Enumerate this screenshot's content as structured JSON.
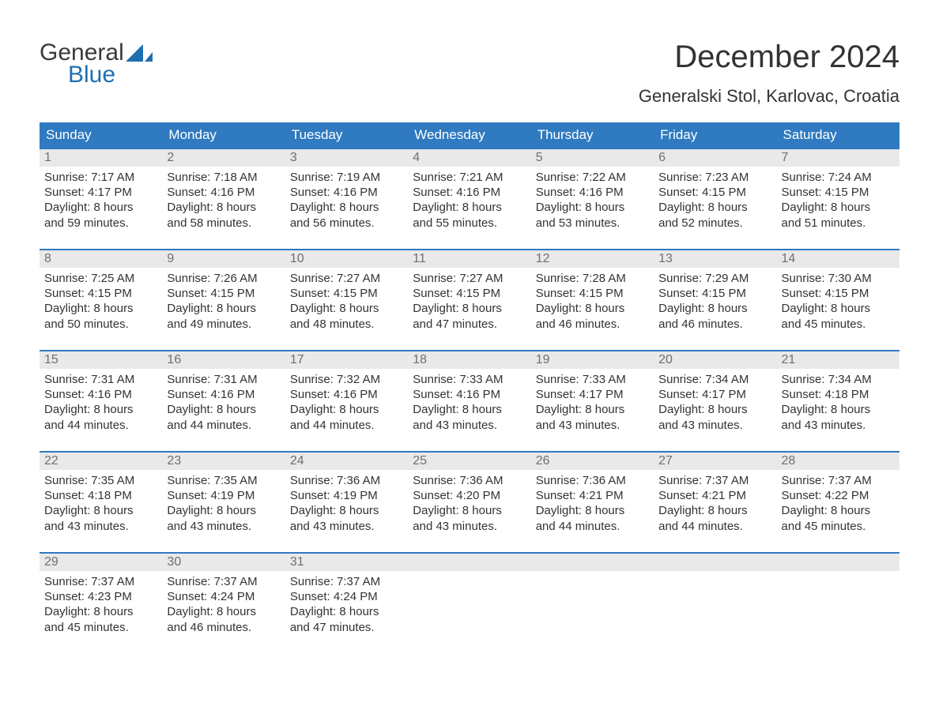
{
  "colors": {
    "header_bg": "#2f7ac0",
    "header_text": "#ffffff",
    "daynum_bg": "#e9e9e9",
    "daynum_text": "#6f6f6f",
    "body_text": "#333333",
    "week_border": "#2f7ac0",
    "logo_general": "#3a3a3a",
    "logo_blue": "#1f6fb2",
    "background": "#ffffff"
  },
  "typography": {
    "month_title_fontsize": 40,
    "location_fontsize": 22,
    "dow_fontsize": 17,
    "daynum_fontsize": 16,
    "body_fontsize": 15,
    "font_family": "Arial"
  },
  "logo": {
    "text1": "General",
    "text2": "Blue"
  },
  "title": {
    "month": "December 2024",
    "location": "Generalski Stol, Karlovac, Croatia"
  },
  "dow": [
    "Sunday",
    "Monday",
    "Tuesday",
    "Wednesday",
    "Thursday",
    "Friday",
    "Saturday"
  ],
  "weeks": [
    [
      {
        "n": "1",
        "sr": "Sunrise: 7:17 AM",
        "ss": "Sunset: 4:17 PM",
        "d1": "Daylight: 8 hours",
        "d2": "and 59 minutes."
      },
      {
        "n": "2",
        "sr": "Sunrise: 7:18 AM",
        "ss": "Sunset: 4:16 PM",
        "d1": "Daylight: 8 hours",
        "d2": "and 58 minutes."
      },
      {
        "n": "3",
        "sr": "Sunrise: 7:19 AM",
        "ss": "Sunset: 4:16 PM",
        "d1": "Daylight: 8 hours",
        "d2": "and 56 minutes."
      },
      {
        "n": "4",
        "sr": "Sunrise: 7:21 AM",
        "ss": "Sunset: 4:16 PM",
        "d1": "Daylight: 8 hours",
        "d2": "and 55 minutes."
      },
      {
        "n": "5",
        "sr": "Sunrise: 7:22 AM",
        "ss": "Sunset: 4:16 PM",
        "d1": "Daylight: 8 hours",
        "d2": "and 53 minutes."
      },
      {
        "n": "6",
        "sr": "Sunrise: 7:23 AM",
        "ss": "Sunset: 4:15 PM",
        "d1": "Daylight: 8 hours",
        "d2": "and 52 minutes."
      },
      {
        "n": "7",
        "sr": "Sunrise: 7:24 AM",
        "ss": "Sunset: 4:15 PM",
        "d1": "Daylight: 8 hours",
        "d2": "and 51 minutes."
      }
    ],
    [
      {
        "n": "8",
        "sr": "Sunrise: 7:25 AM",
        "ss": "Sunset: 4:15 PM",
        "d1": "Daylight: 8 hours",
        "d2": "and 50 minutes."
      },
      {
        "n": "9",
        "sr": "Sunrise: 7:26 AM",
        "ss": "Sunset: 4:15 PM",
        "d1": "Daylight: 8 hours",
        "d2": "and 49 minutes."
      },
      {
        "n": "10",
        "sr": "Sunrise: 7:27 AM",
        "ss": "Sunset: 4:15 PM",
        "d1": "Daylight: 8 hours",
        "d2": "and 48 minutes."
      },
      {
        "n": "11",
        "sr": "Sunrise: 7:27 AM",
        "ss": "Sunset: 4:15 PM",
        "d1": "Daylight: 8 hours",
        "d2": "and 47 minutes."
      },
      {
        "n": "12",
        "sr": "Sunrise: 7:28 AM",
        "ss": "Sunset: 4:15 PM",
        "d1": "Daylight: 8 hours",
        "d2": "and 46 minutes."
      },
      {
        "n": "13",
        "sr": "Sunrise: 7:29 AM",
        "ss": "Sunset: 4:15 PM",
        "d1": "Daylight: 8 hours",
        "d2": "and 46 minutes."
      },
      {
        "n": "14",
        "sr": "Sunrise: 7:30 AM",
        "ss": "Sunset: 4:15 PM",
        "d1": "Daylight: 8 hours",
        "d2": "and 45 minutes."
      }
    ],
    [
      {
        "n": "15",
        "sr": "Sunrise: 7:31 AM",
        "ss": "Sunset: 4:16 PM",
        "d1": "Daylight: 8 hours",
        "d2": "and 44 minutes."
      },
      {
        "n": "16",
        "sr": "Sunrise: 7:31 AM",
        "ss": "Sunset: 4:16 PM",
        "d1": "Daylight: 8 hours",
        "d2": "and 44 minutes."
      },
      {
        "n": "17",
        "sr": "Sunrise: 7:32 AM",
        "ss": "Sunset: 4:16 PM",
        "d1": "Daylight: 8 hours",
        "d2": "and 44 minutes."
      },
      {
        "n": "18",
        "sr": "Sunrise: 7:33 AM",
        "ss": "Sunset: 4:16 PM",
        "d1": "Daylight: 8 hours",
        "d2": "and 43 minutes."
      },
      {
        "n": "19",
        "sr": "Sunrise: 7:33 AM",
        "ss": "Sunset: 4:17 PM",
        "d1": "Daylight: 8 hours",
        "d2": "and 43 minutes."
      },
      {
        "n": "20",
        "sr": "Sunrise: 7:34 AM",
        "ss": "Sunset: 4:17 PM",
        "d1": "Daylight: 8 hours",
        "d2": "and 43 minutes."
      },
      {
        "n": "21",
        "sr": "Sunrise: 7:34 AM",
        "ss": "Sunset: 4:18 PM",
        "d1": "Daylight: 8 hours",
        "d2": "and 43 minutes."
      }
    ],
    [
      {
        "n": "22",
        "sr": "Sunrise: 7:35 AM",
        "ss": "Sunset: 4:18 PM",
        "d1": "Daylight: 8 hours",
        "d2": "and 43 minutes."
      },
      {
        "n": "23",
        "sr": "Sunrise: 7:35 AM",
        "ss": "Sunset: 4:19 PM",
        "d1": "Daylight: 8 hours",
        "d2": "and 43 minutes."
      },
      {
        "n": "24",
        "sr": "Sunrise: 7:36 AM",
        "ss": "Sunset: 4:19 PM",
        "d1": "Daylight: 8 hours",
        "d2": "and 43 minutes."
      },
      {
        "n": "25",
        "sr": "Sunrise: 7:36 AM",
        "ss": "Sunset: 4:20 PM",
        "d1": "Daylight: 8 hours",
        "d2": "and 43 minutes."
      },
      {
        "n": "26",
        "sr": "Sunrise: 7:36 AM",
        "ss": "Sunset: 4:21 PM",
        "d1": "Daylight: 8 hours",
        "d2": "and 44 minutes."
      },
      {
        "n": "27",
        "sr": "Sunrise: 7:37 AM",
        "ss": "Sunset: 4:21 PM",
        "d1": "Daylight: 8 hours",
        "d2": "and 44 minutes."
      },
      {
        "n": "28",
        "sr": "Sunrise: 7:37 AM",
        "ss": "Sunset: 4:22 PM",
        "d1": "Daylight: 8 hours",
        "d2": "and 45 minutes."
      }
    ],
    [
      {
        "n": "29",
        "sr": "Sunrise: 7:37 AM",
        "ss": "Sunset: 4:23 PM",
        "d1": "Daylight: 8 hours",
        "d2": "and 45 minutes."
      },
      {
        "n": "30",
        "sr": "Sunrise: 7:37 AM",
        "ss": "Sunset: 4:24 PM",
        "d1": "Daylight: 8 hours",
        "d2": "and 46 minutes."
      },
      {
        "n": "31",
        "sr": "Sunrise: 7:37 AM",
        "ss": "Sunset: 4:24 PM",
        "d1": "Daylight: 8 hours",
        "d2": "and 47 minutes."
      },
      {
        "empty": true
      },
      {
        "empty": true
      },
      {
        "empty": true
      },
      {
        "empty": true
      }
    ]
  ]
}
